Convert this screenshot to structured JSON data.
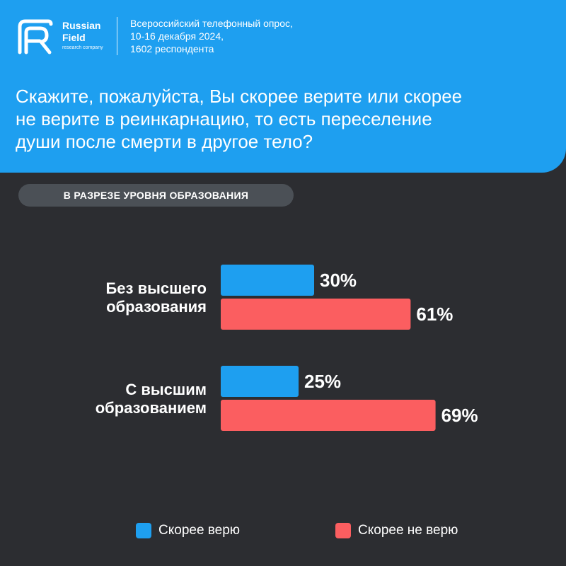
{
  "brand": {
    "line1": "Russian",
    "line2": "Field",
    "tagline": "research company"
  },
  "survey": {
    "line1": "Всероссийский телефонный опрос,",
    "line2": "10-16 декабря 2024,",
    "line3": "1602 респондента"
  },
  "question": "Скажите, пожалуйста, Вы скорее  верите или скорее\nне верите в  реинкарнацию, то есть переселение\nдуши после смерти в другое тело?",
  "section_label": "В РАЗРЕЗЕ УРОВНЯ ОБРАЗОВАНИЯ",
  "colors": {
    "header": "#1e9ff0",
    "background": "#2c2d31",
    "believe": "#1e9ff0",
    "not_believe": "#fb5e60"
  },
  "chart_data": {
    "type": "bar",
    "orientation": "horizontal",
    "categories": [
      "Без высшего\nобразования",
      "С высшим\nобразованием"
    ],
    "series": [
      {
        "name": "Скорее верю",
        "values": [
          30,
          25
        ],
        "labels": [
          "30%",
          "25%"
        ],
        "color": "#1e9ff0"
      },
      {
        "name": "Скорее не верю",
        "values": [
          61,
          69
        ],
        "labels": [
          "61%",
          "69%"
        ],
        "color": "#fb5e60"
      }
    ],
    "xlim": [
      0,
      100
    ],
    "grid": false,
    "legend": "bottom"
  }
}
